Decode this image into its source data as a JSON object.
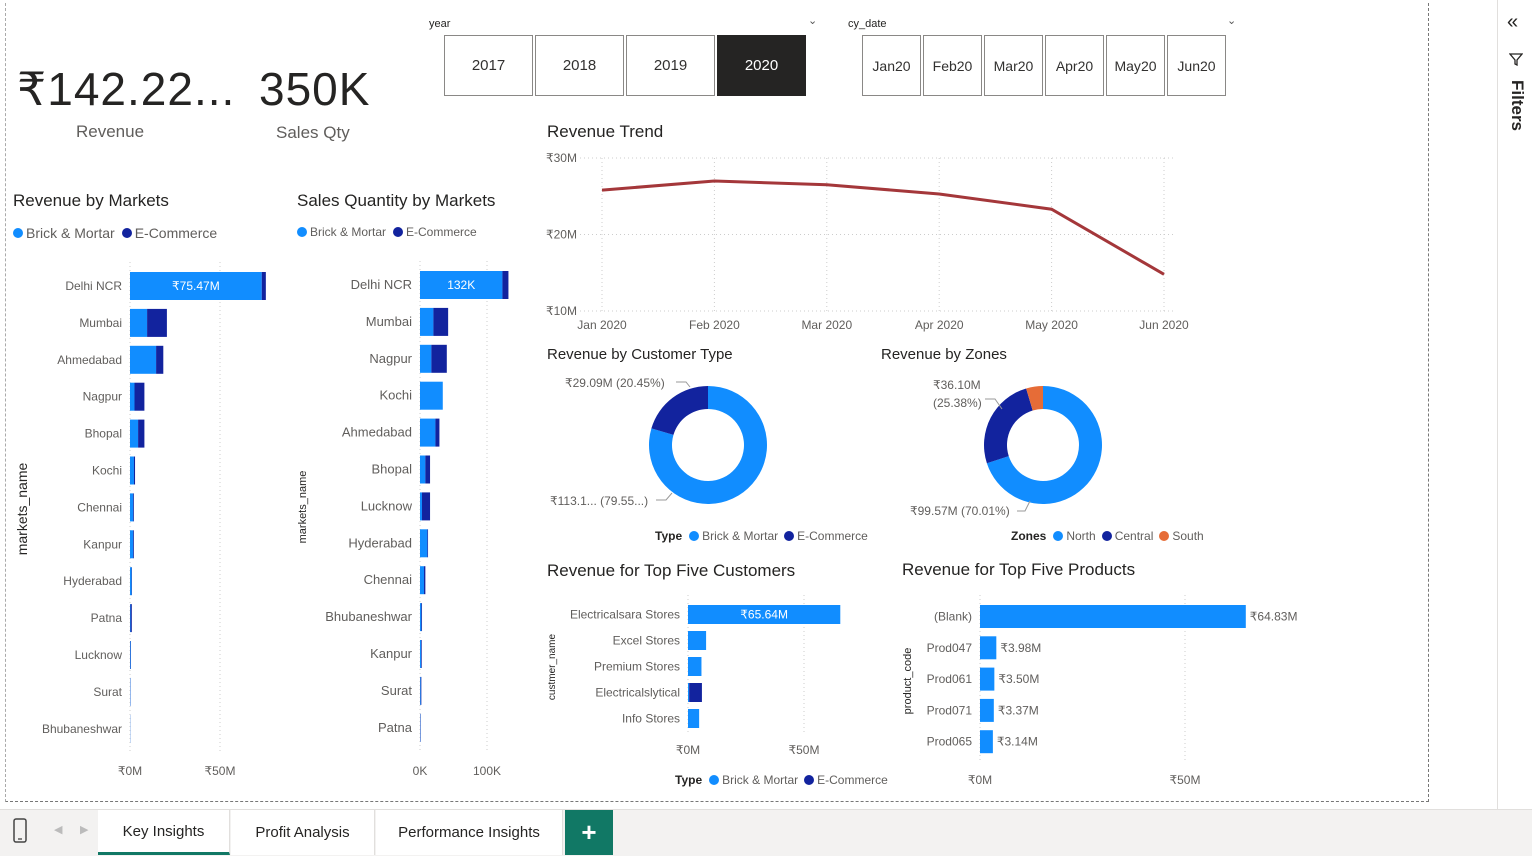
{
  "kpis": {
    "revenue_value": "₹142.22...",
    "revenue_label": "Revenue",
    "qty_value": "350K",
    "qty_label": "Sales Qty"
  },
  "year_slicer": {
    "title": "year",
    "options": [
      "2017",
      "2018",
      "2019",
      "2020"
    ],
    "selected": "2020"
  },
  "date_slicer": {
    "title": "cy_date",
    "options": [
      [
        "Jan",
        "20"
      ],
      [
        "Feb",
        "20"
      ],
      [
        "Mar",
        "20"
      ],
      [
        "Apr",
        "20"
      ],
      [
        "May",
        "20"
      ],
      [
        "Jun",
        "20"
      ]
    ]
  },
  "legend_labels": {
    "brick": "Brick & Mortar",
    "ecom": "E-Commerce"
  },
  "colors": {
    "brick": "#118dff",
    "ecom": "#12239e",
    "south": "#e66c37",
    "trend": "#a4373a"
  },
  "filters_label": "Filters",
  "tabs": [
    "Key Insights",
    "Profit Analysis",
    "Performance Insights"
  ],
  "chart_data": [
    {
      "id": "rev_markets",
      "type": "bar",
      "title": "Revenue by Markets",
      "ylabel": "markets_name",
      "xticks": [
        "₹0M",
        "₹50M"
      ],
      "xlim": [
        0,
        100
      ],
      "categories": [
        "Delhi NCR",
        "Mumbai",
        "Ahmedabad",
        "Nagpur",
        "Bhopal",
        "Kochi",
        "Chennai",
        "Kanpur",
        "Hyderabad",
        "Patna",
        "Lucknow",
        "Surat",
        "Bhubaneshwar"
      ],
      "series": [
        {
          "name": "Brick & Mortar",
          "values": [
            73.2,
            9.5,
            14.5,
            2.5,
            4.5,
            2.2,
            1.8,
            1.8,
            0.9,
            0.3,
            0.3,
            0.2,
            0.1
          ]
        },
        {
          "name": "E-Commerce",
          "values": [
            2.27,
            11.0,
            4.0,
            5.5,
            3.5,
            0.6,
            0.4,
            0.4,
            0.2,
            0.7,
            0.2,
            0.1,
            0.05
          ]
        }
      ],
      "data_labels": [
        "₹75.47M"
      ]
    },
    {
      "id": "qty_markets",
      "type": "bar",
      "title": "Sales Quantity by Markets",
      "ylabel": "markets_name",
      "xticks": [
        "0K",
        "100K"
      ],
      "xlim": [
        0,
        200
      ],
      "categories": [
        "Delhi NCR",
        "Mumbai",
        "Nagpur",
        "Kochi",
        "Ahmedabad",
        "Bhopal",
        "Lucknow",
        "Hyderabad",
        "Chennai",
        "Bhubaneshwar",
        "Kanpur",
        "Surat",
        "Patna"
      ],
      "series": [
        {
          "name": "Brick & Mortar",
          "values": [
            123,
            20,
            17,
            34,
            23,
            8,
            3,
            11,
            6,
            2,
            1.5,
            1,
            0.5
          ]
        },
        {
          "name": "E-Commerce",
          "values": [
            9,
            22,
            23,
            0,
            6,
            7,
            12,
            1,
            2,
            1,
            1,
            1,
            0.5
          ]
        }
      ],
      "data_labels": [
        "132K"
      ]
    },
    {
      "id": "rev_trend",
      "type": "line",
      "title": "Revenue Trend",
      "x": [
        "Jan 2020",
        "Feb 2020",
        "Mar 2020",
        "Apr 2020",
        "May 2020",
        "Jun 2020"
      ],
      "y": [
        25.8,
        27.0,
        26.5,
        25.3,
        23.3,
        14.8
      ],
      "yticks": [
        "₹30M",
        "₹20M",
        "₹10M"
      ],
      "ylim": [
        10,
        30
      ]
    },
    {
      "id": "rev_customer_type",
      "type": "pie",
      "title": "Revenue by Customer Type",
      "legend_title": "Type",
      "slices": [
        {
          "name": "Brick & Mortar",
          "value": 79.55,
          "label": "₹113.1... (79.55...)"
        },
        {
          "name": "E-Commerce",
          "value": 20.45,
          "label": "₹29.09M (20.45%)"
        }
      ]
    },
    {
      "id": "rev_zones",
      "type": "pie",
      "title": "Revenue by Zones",
      "legend_title": "Zones",
      "slices": [
        {
          "name": "North",
          "value": 70.01,
          "label": "₹99.57M (70.01%)"
        },
        {
          "name": "Central",
          "value": 25.38,
          "label": "₹36.10M (25.38%)"
        },
        {
          "name": "South",
          "value": 4.61
        }
      ]
    },
    {
      "id": "top_customers",
      "type": "bar",
      "title": "Revenue for Top Five Customers",
      "ylabel": "custmer_name",
      "legend_title": "Type",
      "xticks": [
        "₹0M",
        "₹50M"
      ],
      "xlim": [
        0,
        100
      ],
      "categories": [
        "Electricalsara Stores",
        "Excel Stores",
        "Premium Stores",
        "Electricalslytical",
        "Info Stores"
      ],
      "series": [
        {
          "name": "Brick & Mortar",
          "values": [
            65.64,
            7.8,
            5.8,
            0.5,
            4.8
          ]
        },
        {
          "name": "E-Commerce",
          "values": [
            0,
            0,
            0,
            5.5,
            0
          ]
        }
      ],
      "data_labels": [
        "₹65.64M"
      ]
    },
    {
      "id": "top_products",
      "type": "bar",
      "title": "Revenue for Top Five Products",
      "ylabel": "product_code",
      "xticks": [
        "₹0M",
        "₹50M"
      ],
      "xlim": [
        0,
        100
      ],
      "categories": [
        "(Blank)",
        "Prod047",
        "Prod061",
        "Prod071",
        "Prod065"
      ],
      "values": [
        64.83,
        3.98,
        3.5,
        3.37,
        3.14
      ],
      "data_labels": [
        "₹64.83M",
        "₹3.98M",
        "₹3.50M",
        "₹3.37M",
        "₹3.14M"
      ]
    }
  ]
}
